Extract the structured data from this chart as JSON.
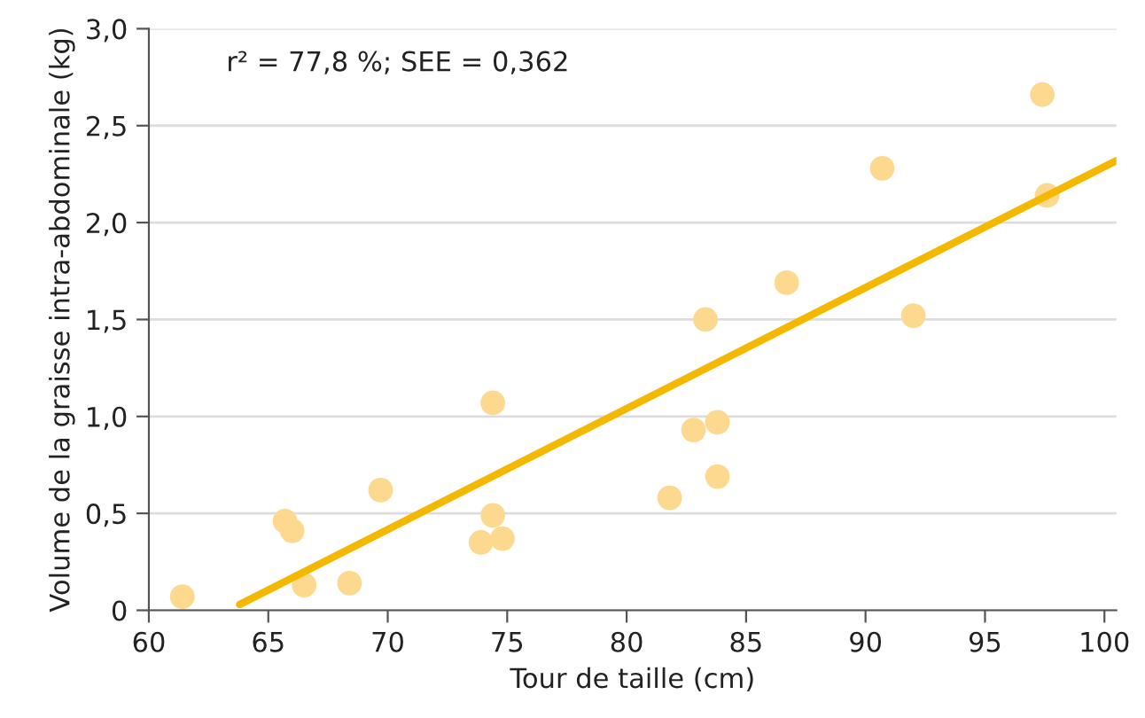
{
  "chart_data": {
    "type": "scatter",
    "xlabel": "Tour de taille (cm)",
    "ylabel": "Volume de la graisse intra-abdominale (kg)",
    "annotations": [
      "r² = 77,8 %; SEE = 0,362"
    ],
    "xlim": [
      60,
      100.5
    ],
    "xticks": [
      60,
      65,
      70,
      75,
      80,
      85,
      90,
      95,
      100
    ],
    "ylim": [
      0,
      3.0
    ],
    "yticks": [
      {
        "value": 0,
        "label": "0"
      },
      {
        "value": 0.5,
        "label": "0,5"
      },
      {
        "value": 1.0,
        "label": "1,0"
      },
      {
        "value": 1.5,
        "label": "1,5"
      },
      {
        "value": 2.0,
        "label": "2,0"
      },
      {
        "value": 2.5,
        "label": "2,5"
      },
      {
        "value": 3.0,
        "label": "3,0"
      }
    ],
    "grid": "y",
    "series": [
      {
        "marker": "circle",
        "color": "#fdd98f",
        "x": [
          61.4,
          65.7,
          66.0,
          66.5,
          68.4,
          69.7,
          74.4,
          74.4,
          73.9,
          74.8,
          81.8,
          82.8,
          83.3,
          83.8,
          83.8,
          86.7,
          90.7,
          92.0,
          97.4,
          97.6
        ],
        "values": [
          0.07,
          0.46,
          0.41,
          0.13,
          0.14,
          0.62,
          1.07,
          0.49,
          0.35,
          0.37,
          0.58,
          0.93,
          1.5,
          0.97,
          0.69,
          1.69,
          2.28,
          1.52,
          2.66,
          2.14
        ]
      },
      {
        "type": "line",
        "color": "#f5b800",
        "x": [
          63.8,
          100.5
        ],
        "values": [
          0.03,
          2.32
        ]
      }
    ]
  }
}
